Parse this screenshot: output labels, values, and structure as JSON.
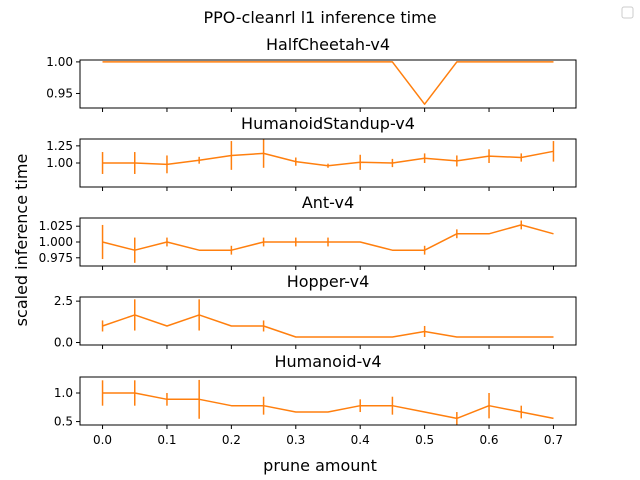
{
  "figure": {
    "suptitle": "PPO-cleanrl l1 inference time",
    "xlabel": "prune amount",
    "ylabel": "scaled inference time"
  },
  "colors": {
    "series": "#ff7f0e",
    "errorbar": "#ff7f0e",
    "axes": "#000000"
  },
  "chart_data": [
    {
      "type": "line",
      "title": "HalfCheetah-v4",
      "x": [
        0.0,
        0.05,
        0.1,
        0.15,
        0.2,
        0.25,
        0.3,
        0.35,
        0.4,
        0.45,
        0.5,
        0.55,
        0.6,
        0.65,
        0.7
      ],
      "series": [
        {
          "values": [
            1.0,
            1.0,
            1.0,
            1.0,
            1.0,
            1.0,
            1.0,
            1.0,
            1.0,
            1.0,
            0.933,
            1.0,
            1.0,
            1.0,
            1.0
          ],
          "errors": [
            0,
            0,
            0,
            0,
            0,
            0,
            0,
            0,
            0,
            0,
            0,
            0,
            0,
            0,
            0
          ]
        }
      ],
      "ylim": [
        0.927,
        1.003
      ],
      "yticks": [
        0.95,
        1.0
      ],
      "ytick_labels": [
        "0.95",
        "1.00"
      ]
    },
    {
      "type": "line",
      "title": "HumanoidStandup-v4",
      "x": [
        0.0,
        0.05,
        0.1,
        0.15,
        0.2,
        0.25,
        0.3,
        0.35,
        0.4,
        0.45,
        0.5,
        0.55,
        0.6,
        0.65,
        0.7
      ],
      "series": [
        {
          "values": [
            1.0,
            1.0,
            0.98,
            1.04,
            1.11,
            1.14,
            1.02,
            0.96,
            1.01,
            1.0,
            1.07,
            1.03,
            1.1,
            1.08,
            1.17
          ],
          "errors": [
            0.16,
            0.16,
            0.13,
            0.05,
            0.21,
            0.21,
            0.06,
            0.03,
            0.11,
            0.06,
            0.07,
            0.08,
            0.1,
            0.06,
            0.15
          ]
        }
      ],
      "ylim": [
        0.65,
        1.35
      ],
      "yticks": [
        1.0,
        1.25
      ],
      "ytick_labels": [
        "1.00",
        "1.25"
      ]
    },
    {
      "type": "line",
      "title": "Ant-v4",
      "x": [
        0.0,
        0.05,
        0.1,
        0.15,
        0.2,
        0.25,
        0.3,
        0.35,
        0.4,
        0.45,
        0.5,
        0.55,
        0.6,
        0.65,
        0.7
      ],
      "series": [
        {
          "values": [
            1.0,
            0.987,
            1.0,
            0.987,
            0.987,
            1.0,
            1.0,
            1.0,
            1.0,
            0.987,
            0.987,
            1.013,
            1.013,
            1.027,
            1.013
          ],
          "errors": [
            0.027,
            0.02,
            0.007,
            0.0,
            0.007,
            0.007,
            0.007,
            0.007,
            0.0,
            0.0,
            0.007,
            0.007,
            0.0,
            0.007,
            0.0
          ]
        }
      ],
      "ylim": [
        0.962,
        1.038
      ],
      "yticks": [
        0.975,
        1.0,
        1.025
      ],
      "ytick_labels": [
        "0.975",
        "1.000",
        "1.025"
      ]
    },
    {
      "type": "line",
      "title": "Hopper-v4",
      "x": [
        0.0,
        0.05,
        0.1,
        0.15,
        0.2,
        0.25,
        0.3,
        0.35,
        0.4,
        0.45,
        0.5,
        0.55,
        0.6,
        0.65,
        0.7
      ],
      "series": [
        {
          "values": [
            1.0,
            1.667,
            1.0,
            1.667,
            1.0,
            1.0,
            0.333,
            0.333,
            0.333,
            0.333,
            0.667,
            0.333,
            0.333,
            0.333,
            0.333
          ],
          "errors": [
            0.333,
            0.943,
            0.0,
            0.943,
            0.0,
            0.333,
            0.0,
            0.0,
            0.0,
            0.0,
            0.333,
            0.0,
            0.0,
            0.0,
            0.0
          ]
        }
      ],
      "ylim": [
        -0.15,
        2.75
      ],
      "yticks": [
        0.0,
        2.5
      ],
      "ytick_labels": [
        "0.0",
        "2.5"
      ]
    },
    {
      "type": "line",
      "title": "Humanoid-v4",
      "x": [
        0.0,
        0.05,
        0.1,
        0.15,
        0.2,
        0.25,
        0.3,
        0.35,
        0.4,
        0.45,
        0.5,
        0.55,
        0.6,
        0.65,
        0.7
      ],
      "series": [
        {
          "values": [
            1.0,
            1.0,
            0.889,
            0.889,
            0.778,
            0.778,
            0.667,
            0.667,
            0.778,
            0.778,
            0.667,
            0.556,
            0.778,
            0.667,
            0.556
          ],
          "errors": [
            0.222,
            0.222,
            0.111,
            0.34,
            0.0,
            0.157,
            0.0,
            0.0,
            0.111,
            0.157,
            0.0,
            0.111,
            0.222,
            0.111,
            0.0
          ]
        }
      ],
      "ylim": [
        0.44,
        1.28
      ],
      "yticks": [
        0.5,
        1.0
      ],
      "ytick_labels": [
        "0.5",
        "1.0"
      ]
    }
  ],
  "xaxis": {
    "xlim": [
      -0.035,
      0.735
    ],
    "ticks": [
      0.0,
      0.1,
      0.2,
      0.3,
      0.4,
      0.5,
      0.6,
      0.7
    ],
    "tick_labels": [
      "0.0",
      "0.1",
      "0.2",
      "0.3",
      "0.4",
      "0.5",
      "0.6",
      "0.7"
    ]
  },
  "legend": {
    "entries": [],
    "placement": "top-right"
  }
}
